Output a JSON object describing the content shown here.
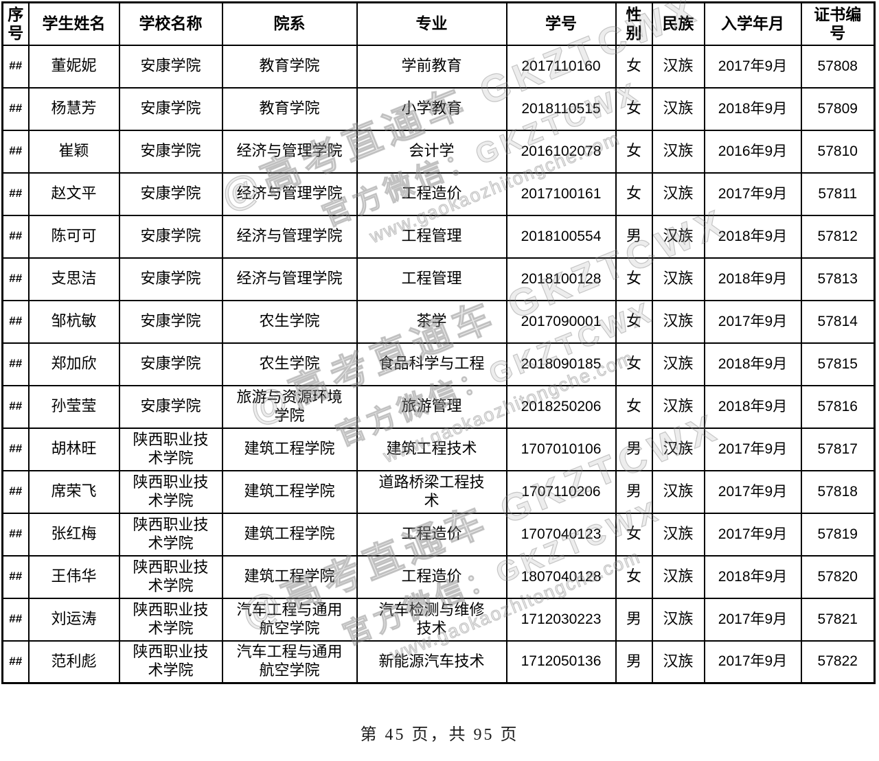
{
  "table": {
    "headers": [
      "序\n号",
      "学生姓名",
      "学校名称",
      "院系",
      "专业",
      "学号",
      "性\n别",
      "民族",
      "入学年月",
      "证书编\n号"
    ],
    "rows": [
      [
        "##",
        "董妮妮",
        "安康学院",
        "教育学院",
        "学前教育",
        "2017110160",
        "女",
        "汉族",
        "2017年9月",
        "57808"
      ],
      [
        "##",
        "杨慧芳",
        "安康学院",
        "教育学院",
        "小学教育",
        "2018110515",
        "女",
        "汉族",
        "2018年9月",
        "57809"
      ],
      [
        "##",
        "崔颖",
        "安康学院",
        "经济与管理学院",
        "会计学",
        "2016102078",
        "女",
        "汉族",
        "2016年9月",
        "57810"
      ],
      [
        "##",
        "赵文平",
        "安康学院",
        "经济与管理学院",
        "工程造价",
        "2017100161",
        "女",
        "汉族",
        "2017年9月",
        "57811"
      ],
      [
        "##",
        "陈可可",
        "安康学院",
        "经济与管理学院",
        "工程管理",
        "2018100554",
        "男",
        "汉族",
        "2018年9月",
        "57812"
      ],
      [
        "##",
        "支思洁",
        "安康学院",
        "经济与管理学院",
        "工程管理",
        "2018100128",
        "女",
        "汉族",
        "2018年9月",
        "57813"
      ],
      [
        "##",
        "邹杭敏",
        "安康学院",
        "农生学院",
        "茶学",
        "2017090001",
        "女",
        "汉族",
        "2017年9月",
        "57814"
      ],
      [
        "##",
        "郑加欣",
        "安康学院",
        "农生学院",
        "食品科学与工程",
        "2018090185",
        "女",
        "汉族",
        "2018年9月",
        "57815"
      ],
      [
        "##",
        "孙莹莹",
        "安康学院",
        "旅游与资源环境\n学院",
        "旅游管理",
        "2018250206",
        "女",
        "汉族",
        "2018年9月",
        "57816"
      ],
      [
        "##",
        "胡林旺",
        "陕西职业技\n术学院",
        "建筑工程学院",
        "建筑工程技术",
        "1707010106",
        "男",
        "汉族",
        "2017年9月",
        "57817"
      ],
      [
        "##",
        "席荣飞",
        "陕西职业技\n术学院",
        "建筑工程学院",
        "道路桥梁工程技\n术",
        "1707110206",
        "男",
        "汉族",
        "2017年9月",
        "57818"
      ],
      [
        "##",
        "张红梅",
        "陕西职业技\n术学院",
        "建筑工程学院",
        "工程造价",
        "1707040123",
        "女",
        "汉族",
        "2017年9月",
        "57819"
      ],
      [
        "##",
        "王伟华",
        "陕西职业技\n术学院",
        "建筑工程学院",
        "工程造价",
        "1807040128",
        "女",
        "汉族",
        "2018年9月",
        "57820"
      ],
      [
        "##",
        "刘运涛",
        "陕西职业技\n术学院",
        "汽车工程与通用\n航空学院",
        "汽车检测与维修\n技术",
        "1712030223",
        "男",
        "汉族",
        "2017年9月",
        "57821"
      ],
      [
        "##",
        "范利彪",
        "陕西职业技\n术学院",
        "汽车工程与通用\n航空学院",
        "新能源汽车技术",
        "1712050136",
        "男",
        "汉族",
        "2017年9月",
        "57822"
      ]
    ]
  },
  "watermark": {
    "line1": "@高考直通车 GKZTCWX",
    "line2": "官方微信：GKZTCWX",
    "line3": "www.gaokaozhitongche.com"
  },
  "footer": {
    "page_info": "第 45 页，共 95 页"
  },
  "colors": {
    "border": "#000000",
    "text": "#000000",
    "watermark_gray": "#828282",
    "background": "#ffffff"
  }
}
